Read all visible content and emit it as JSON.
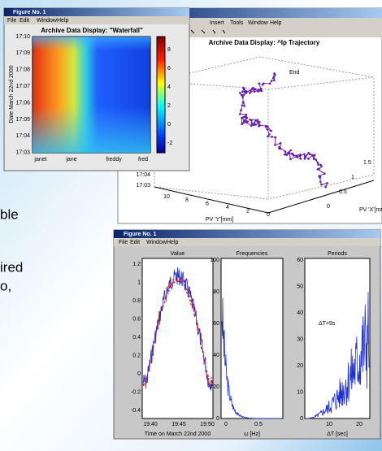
{
  "slide_text": [
    "ble",
    "ired",
    "o,"
  ],
  "waterfall": {
    "window_title": "Figure No. 1",
    "menu": [
      "File",
      "Edit",
      "Window",
      "Help"
    ],
    "title": "Archive Data Display: \"Waterfall\"",
    "y_label": "Date March 22nd 2000",
    "yticks": [
      "17:10",
      "17:09",
      "17:08",
      "17:07",
      "17:06",
      "17:05",
      "17:04",
      "17:03"
    ],
    "xticks": [
      "janet",
      "jane",
      "freddy",
      "fred"
    ],
    "colorbar_ticks": [
      "8",
      "6",
      "4",
      "2",
      "0",
      "-2"
    ]
  },
  "trajectory": {
    "menu": [
      "Insert",
      "Tools",
      "Window",
      "Help"
    ],
    "title": "Archive Data Display: ^Ip Trajectory",
    "annotation": "End",
    "y_label": "PV 'Y'[mm]",
    "x_label": "PV 'X'[mm]",
    "yticks": [
      "10",
      "8",
      "6",
      "4",
      "2",
      "0"
    ],
    "xticks": [
      "1.5",
      "1",
      "0.5",
      "0"
    ],
    "zticks": [
      "17:04",
      "17:03"
    ]
  },
  "analysis": {
    "window_title": "Figure No. 1",
    "menu": [
      "File",
      "Edit",
      "Window",
      "Help"
    ],
    "panels": [
      {
        "title": "Value",
        "yticks": [
          "1.2",
          "1",
          "0.8",
          "0.6",
          "0.4",
          "0.2",
          "0",
          "-0.2",
          "-0.4"
        ],
        "xticks": [
          "19:40",
          "19:45",
          "19:50"
        ],
        "x_label": "Time on March 22nd 2000"
      },
      {
        "title": "Frequencies",
        "yticks": [
          "100",
          "80",
          "60",
          "40",
          "20",
          "0"
        ],
        "xticks": [
          "0",
          "0.5"
        ],
        "x_label": "ω [Hz]"
      },
      {
        "title": "Periods",
        "yticks": [
          "60",
          "50",
          "40",
          "30",
          "20",
          "10",
          "0"
        ],
        "xticks": [
          "10",
          "20"
        ],
        "x_label": "ΔT [sec]",
        "annotation": "ΔT=9s"
      }
    ]
  }
}
